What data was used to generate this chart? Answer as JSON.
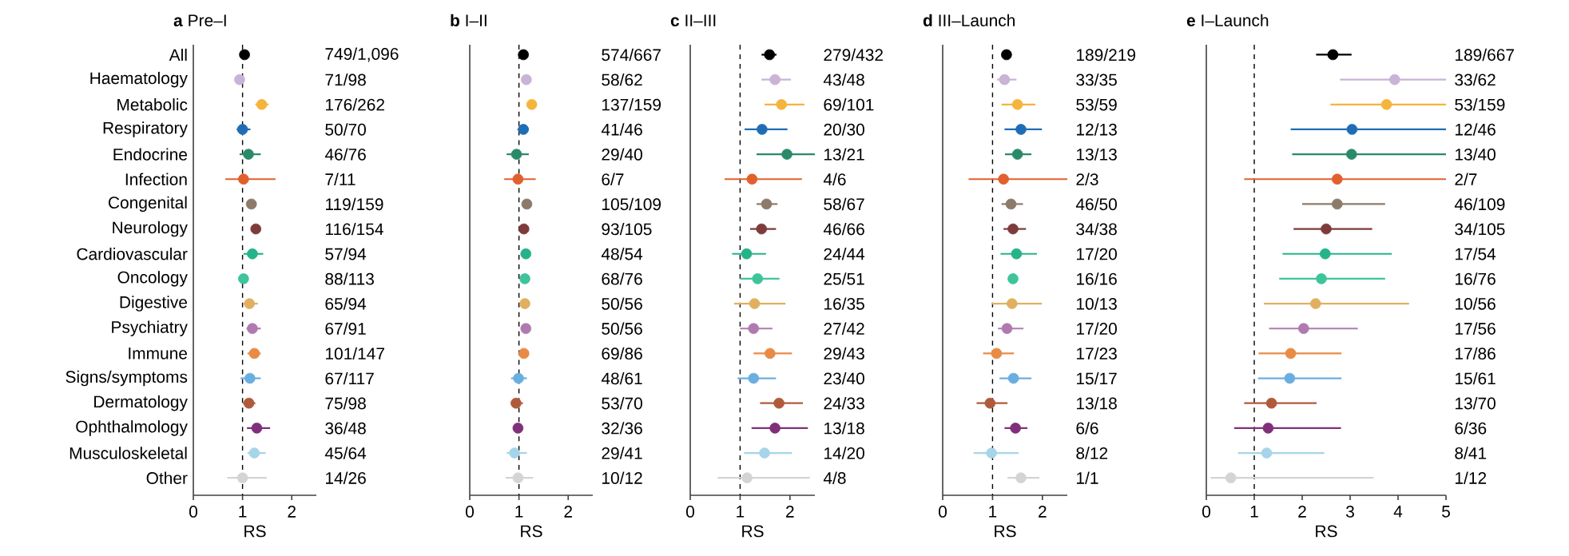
{
  "chart_data": [
    {
      "type": "scatter",
      "orientation": "horizontal",
      "marker": "circle",
      "title": "**a** Pre–I",
      "xlabel": "RS",
      "xlim": [
        0,
        2.5
      ],
      "xticks": [
        0,
        1,
        2
      ],
      "categories": [
        "All",
        "Haematology",
        "Metabolic",
        "Respiratory",
        "Endocrine",
        "Infection",
        "Congenital",
        "Neurology",
        "Cardiovascular",
        "Oncology",
        "Digestive",
        "Psychiatry",
        "Immune",
        "Signs/symptoms",
        "Dermatology",
        "Ophthalmology",
        "Musculoskeletal",
        "Other"
      ],
      "colors": [
        "#000000",
        "#c9b3d6",
        "#f5b43c",
        "#1f6eb5",
        "#2a8a68",
        "#e0602e",
        "#8c7b6b",
        "#7d3b3b",
        "#25b38a",
        "#3ec49a",
        "#e0b060",
        "#b07ab0",
        "#e88b47",
        "#6aaee0",
        "#b05a3c",
        "#80307a",
        "#a6d4e8",
        "#d4d4d4"
      ],
      "values": [
        1.04,
        0.94,
        1.39,
        1.0,
        1.12,
        1.02,
        1.18,
        1.27,
        1.2,
        1.02,
        1.14,
        1.2,
        1.24,
        1.15,
        1.13,
        1.29,
        1.24,
        1.0
      ],
      "errors": [
        null,
        null,
        [
          1.26,
          1.53
        ],
        [
          0.88,
          1.16
        ],
        [
          0.94,
          1.37
        ],
        [
          0.65,
          1.67
        ],
        null,
        null,
        [
          1.02,
          1.42
        ],
        null,
        [
          1.01,
          1.31
        ],
        [
          1.08,
          1.37
        ],
        [
          1.1,
          1.37
        ],
        [
          0.96,
          1.37
        ],
        [
          1.01,
          1.26
        ],
        [
          1.09,
          1.56
        ],
        [
          1.1,
          1.47
        ],
        [
          0.69,
          1.49
        ]
      ],
      "ref_lines": [
        {
          "axis": "x",
          "value": 1,
          "line_style": "dashed"
        }
      ],
      "annotations": [
        "749/1,096",
        "71/98",
        "176/262",
        "50/70",
        "46/76",
        "7/11",
        "119/159",
        "116/154",
        "57/94",
        "88/113",
        "65/94",
        "67/91",
        "101/147",
        "67/117",
        "75/98",
        "36/48",
        "45/64",
        "14/26"
      ]
    },
    {
      "type": "scatter",
      "orientation": "horizontal",
      "marker": "circle",
      "title": "**b** I–II",
      "xlabel": "RS",
      "xlim": [
        0,
        2.5
      ],
      "xticks": [
        0,
        1,
        2
      ],
      "tick_labels": "x",
      "categories": [
        null,
        null,
        null,
        null,
        null,
        null,
        null,
        null,
        null,
        null,
        null,
        null,
        null,
        null,
        null,
        null,
        null,
        null
      ],
      "colors": [
        "#000000",
        "#c9b3d6",
        "#f5b43c",
        "#1f6eb5",
        "#2a8a68",
        "#e0602e",
        "#8c7b6b",
        "#7d3b3b",
        "#25b38a",
        "#3ec49a",
        "#e0b060",
        "#b07ab0",
        "#e88b47",
        "#6aaee0",
        "#b05a3c",
        "#80307a",
        "#a6d4e8",
        "#d4d4d4"
      ],
      "values": [
        1.09,
        1.15,
        1.26,
        1.09,
        0.95,
        0.98,
        1.16,
        1.1,
        1.14,
        1.12,
        1.12,
        1.14,
        1.1,
        0.99,
        0.94,
        0.98,
        0.91,
        0.98
      ],
      "errors": [
        null,
        null,
        null,
        [
          0.97,
          1.2
        ],
        [
          0.75,
          1.2
        ],
        [
          0.7,
          1.34
        ],
        null,
        null,
        null,
        null,
        null,
        null,
        null,
        [
          0.84,
          1.16
        ],
        [
          0.84,
          1.08
        ],
        null,
        [
          0.75,
          1.16
        ],
        [
          0.73,
          1.29
        ]
      ],
      "ref_lines": [
        {
          "axis": "x",
          "value": 1,
          "line_style": "dashed"
        }
      ],
      "annotations": [
        "574/667",
        "58/62",
        "137/159",
        "41/46",
        "29/40",
        "6/7",
        "105/109",
        "93/105",
        "48/54",
        "68/76",
        "50/56",
        "50/56",
        "69/86",
        "48/61",
        "53/70",
        "32/36",
        "29/41",
        "10/12"
      ]
    },
    {
      "type": "scatter",
      "orientation": "horizontal",
      "marker": "circle",
      "title": "**c** II–III",
      "xlabel": "RS",
      "xlim": [
        0,
        2.5
      ],
      "xticks": [
        0,
        1,
        2
      ],
      "tick_labels": "x",
      "categories": [
        null,
        null,
        null,
        null,
        null,
        null,
        null,
        null,
        null,
        null,
        null,
        null,
        null,
        null,
        null,
        null,
        null,
        null
      ],
      "colors": [
        "#000000",
        "#c9b3d6",
        "#f5b43c",
        "#1f6eb5",
        "#2a8a68",
        "#e0602e",
        "#8c7b6b",
        "#7d3b3b",
        "#25b38a",
        "#3ec49a",
        "#e0b060",
        "#b07ab0",
        "#e88b47",
        "#6aaee0",
        "#b05a3c",
        "#80307a",
        "#a6d4e8",
        "#d4d4d4"
      ],
      "values": [
        1.59,
        1.7,
        1.83,
        1.44,
        1.94,
        1.24,
        1.53,
        1.43,
        1.13,
        1.35,
        1.29,
        1.27,
        1.6,
        1.27,
        1.78,
        1.7,
        1.49,
        1.14
      ],
      "errors": [
        [
          1.43,
          1.73
        ],
        [
          1.43,
          2.02
        ],
        [
          1.49,
          2.29
        ],
        [
          1.09,
          1.95
        ],
        [
          1.33,
          2.5
        ],
        [
          0.69,
          2.24
        ],
        [
          1.33,
          1.75
        ],
        [
          1.2,
          1.72
        ],
        [
          0.84,
          1.52
        ],
        [
          1.0,
          1.79
        ],
        [
          0.88,
          1.91
        ],
        [
          1.0,
          1.65
        ],
        [
          1.27,
          2.04
        ],
        [
          0.95,
          1.72
        ],
        [
          1.4,
          2.26
        ],
        [
          1.23,
          2.36
        ],
        [
          1.08,
          2.04
        ],
        [
          0.55,
          2.4
        ]
      ],
      "ref_lines": [
        {
          "axis": "x",
          "value": 1,
          "line_style": "dashed"
        }
      ],
      "annotations": [
        "279/432",
        "43/48",
        "69/101",
        "20/30",
        "13/21",
        "4/6",
        "58/67",
        "46/66",
        "24/44",
        "25/51",
        "16/35",
        "27/42",
        "29/43",
        "23/40",
        "24/33",
        "13/18",
        "14/20",
        "4/8"
      ]
    },
    {
      "type": "scatter",
      "orientation": "horizontal",
      "marker": "circle",
      "title": "**d** III–Launch",
      "xlabel": "RS",
      "xlim": [
        0,
        2.5
      ],
      "xticks": [
        0,
        1,
        2
      ],
      "tick_labels": "x",
      "categories": [
        null,
        null,
        null,
        null,
        null,
        null,
        null,
        null,
        null,
        null,
        null,
        null,
        null,
        null,
        null,
        null,
        null,
        null
      ],
      "colors": [
        "#000000",
        "#c9b3d6",
        "#f5b43c",
        "#1f6eb5",
        "#2a8a68",
        "#e0602e",
        "#8c7b6b",
        "#7d3b3b",
        "#25b38a",
        "#3ec49a",
        "#e0b060",
        "#b07ab0",
        "#e88b47",
        "#6aaee0",
        "#b05a3c",
        "#80307a",
        "#a6d4e8",
        "#d4d4d4"
      ],
      "values": [
        1.28,
        1.24,
        1.5,
        1.57,
        1.5,
        1.22,
        1.37,
        1.41,
        1.48,
        1.41,
        1.39,
        1.29,
        1.08,
        1.42,
        0.95,
        1.46,
        0.98,
        1.57
      ],
      "errors": [
        null,
        [
          1.09,
          1.48
        ],
        [
          1.18,
          1.86
        ],
        [
          1.24,
          1.99
        ],
        [
          1.25,
          1.78
        ],
        [
          0.52,
          2.5
        ],
        [
          1.18,
          1.61
        ],
        [
          1.22,
          1.67
        ],
        [
          1.16,
          1.89
        ],
        null,
        [
          0.98,
          1.99
        ],
        [
          1.11,
          1.62
        ],
        [
          0.81,
          1.43
        ],
        [
          1.14,
          1.78
        ],
        [
          0.68,
          1.3
        ],
        [
          1.24,
          1.7
        ],
        [
          0.62,
          1.52
        ],
        [
          1.3,
          1.94
        ]
      ],
      "ref_lines": [
        {
          "axis": "x",
          "value": 1,
          "line_style": "dashed"
        }
      ],
      "annotations": [
        "189/219",
        "33/35",
        "53/59",
        "12/13",
        "13/13",
        "2/3",
        "46/50",
        "34/38",
        "17/20",
        "16/16",
        "10/13",
        "17/20",
        "17/23",
        "15/17",
        "13/18",
        "6/6",
        "8/12",
        "1/1"
      ]
    },
    {
      "type": "scatter",
      "orientation": "horizontal",
      "marker": "circle",
      "title": "**e** I–Launch",
      "xlabel": "RS",
      "xlim": [
        0,
        5
      ],
      "xticks": [
        0,
        1,
        2,
        3,
        4,
        5
      ],
      "tick_labels": "x",
      "categories": [
        null,
        null,
        null,
        null,
        null,
        null,
        null,
        null,
        null,
        null,
        null,
        null,
        null,
        null,
        null,
        null,
        null,
        null
      ],
      "colors": [
        "#000000",
        "#c9b3d6",
        "#f5b43c",
        "#1f6eb5",
        "#2a8a68",
        "#e0602e",
        "#8c7b6b",
        "#7d3b3b",
        "#25b38a",
        "#3ec49a",
        "#e0b060",
        "#b07ab0",
        "#e88b47",
        "#6aaee0",
        "#b05a3c",
        "#80307a",
        "#a6d4e8",
        "#d4d4d4"
      ],
      "values": [
        2.64,
        3.93,
        3.76,
        3.04,
        3.03,
        2.73,
        2.73,
        2.5,
        2.48,
        2.4,
        2.28,
        2.03,
        1.76,
        1.74,
        1.36,
        1.29,
        1.26,
        0.51
      ],
      "errors": [
        [
          2.29,
          3.03
        ],
        [
          2.79,
          5
        ],
        [
          2.59,
          5
        ],
        [
          1.76,
          5
        ],
        [
          1.79,
          5
        ],
        [
          0.79,
          5
        ],
        [
          2.0,
          3.73
        ],
        [
          1.82,
          3.46
        ],
        [
          1.59,
          3.87
        ],
        [
          1.52,
          3.73
        ],
        [
          1.2,
          4.23
        ],
        [
          1.31,
          3.16
        ],
        [
          1.09,
          2.82
        ],
        [
          1.08,
          2.82
        ],
        [
          0.79,
          2.3
        ],
        [
          0.58,
          2.81
        ],
        [
          0.66,
          2.46
        ],
        [
          0.09,
          3.49
        ]
      ],
      "ref_lines": [
        {
          "axis": "x",
          "value": 1,
          "line_style": "dashed"
        }
      ],
      "annotations": [
        "189/667",
        "33/62",
        "53/159",
        "12/46",
        "13/40",
        "2/7",
        "46/109",
        "34/105",
        "17/54",
        "16/76",
        "10/56",
        "17/56",
        "17/86",
        "15/61",
        "13/70",
        "6/36",
        "8/41",
        "1/12"
      ]
    }
  ]
}
